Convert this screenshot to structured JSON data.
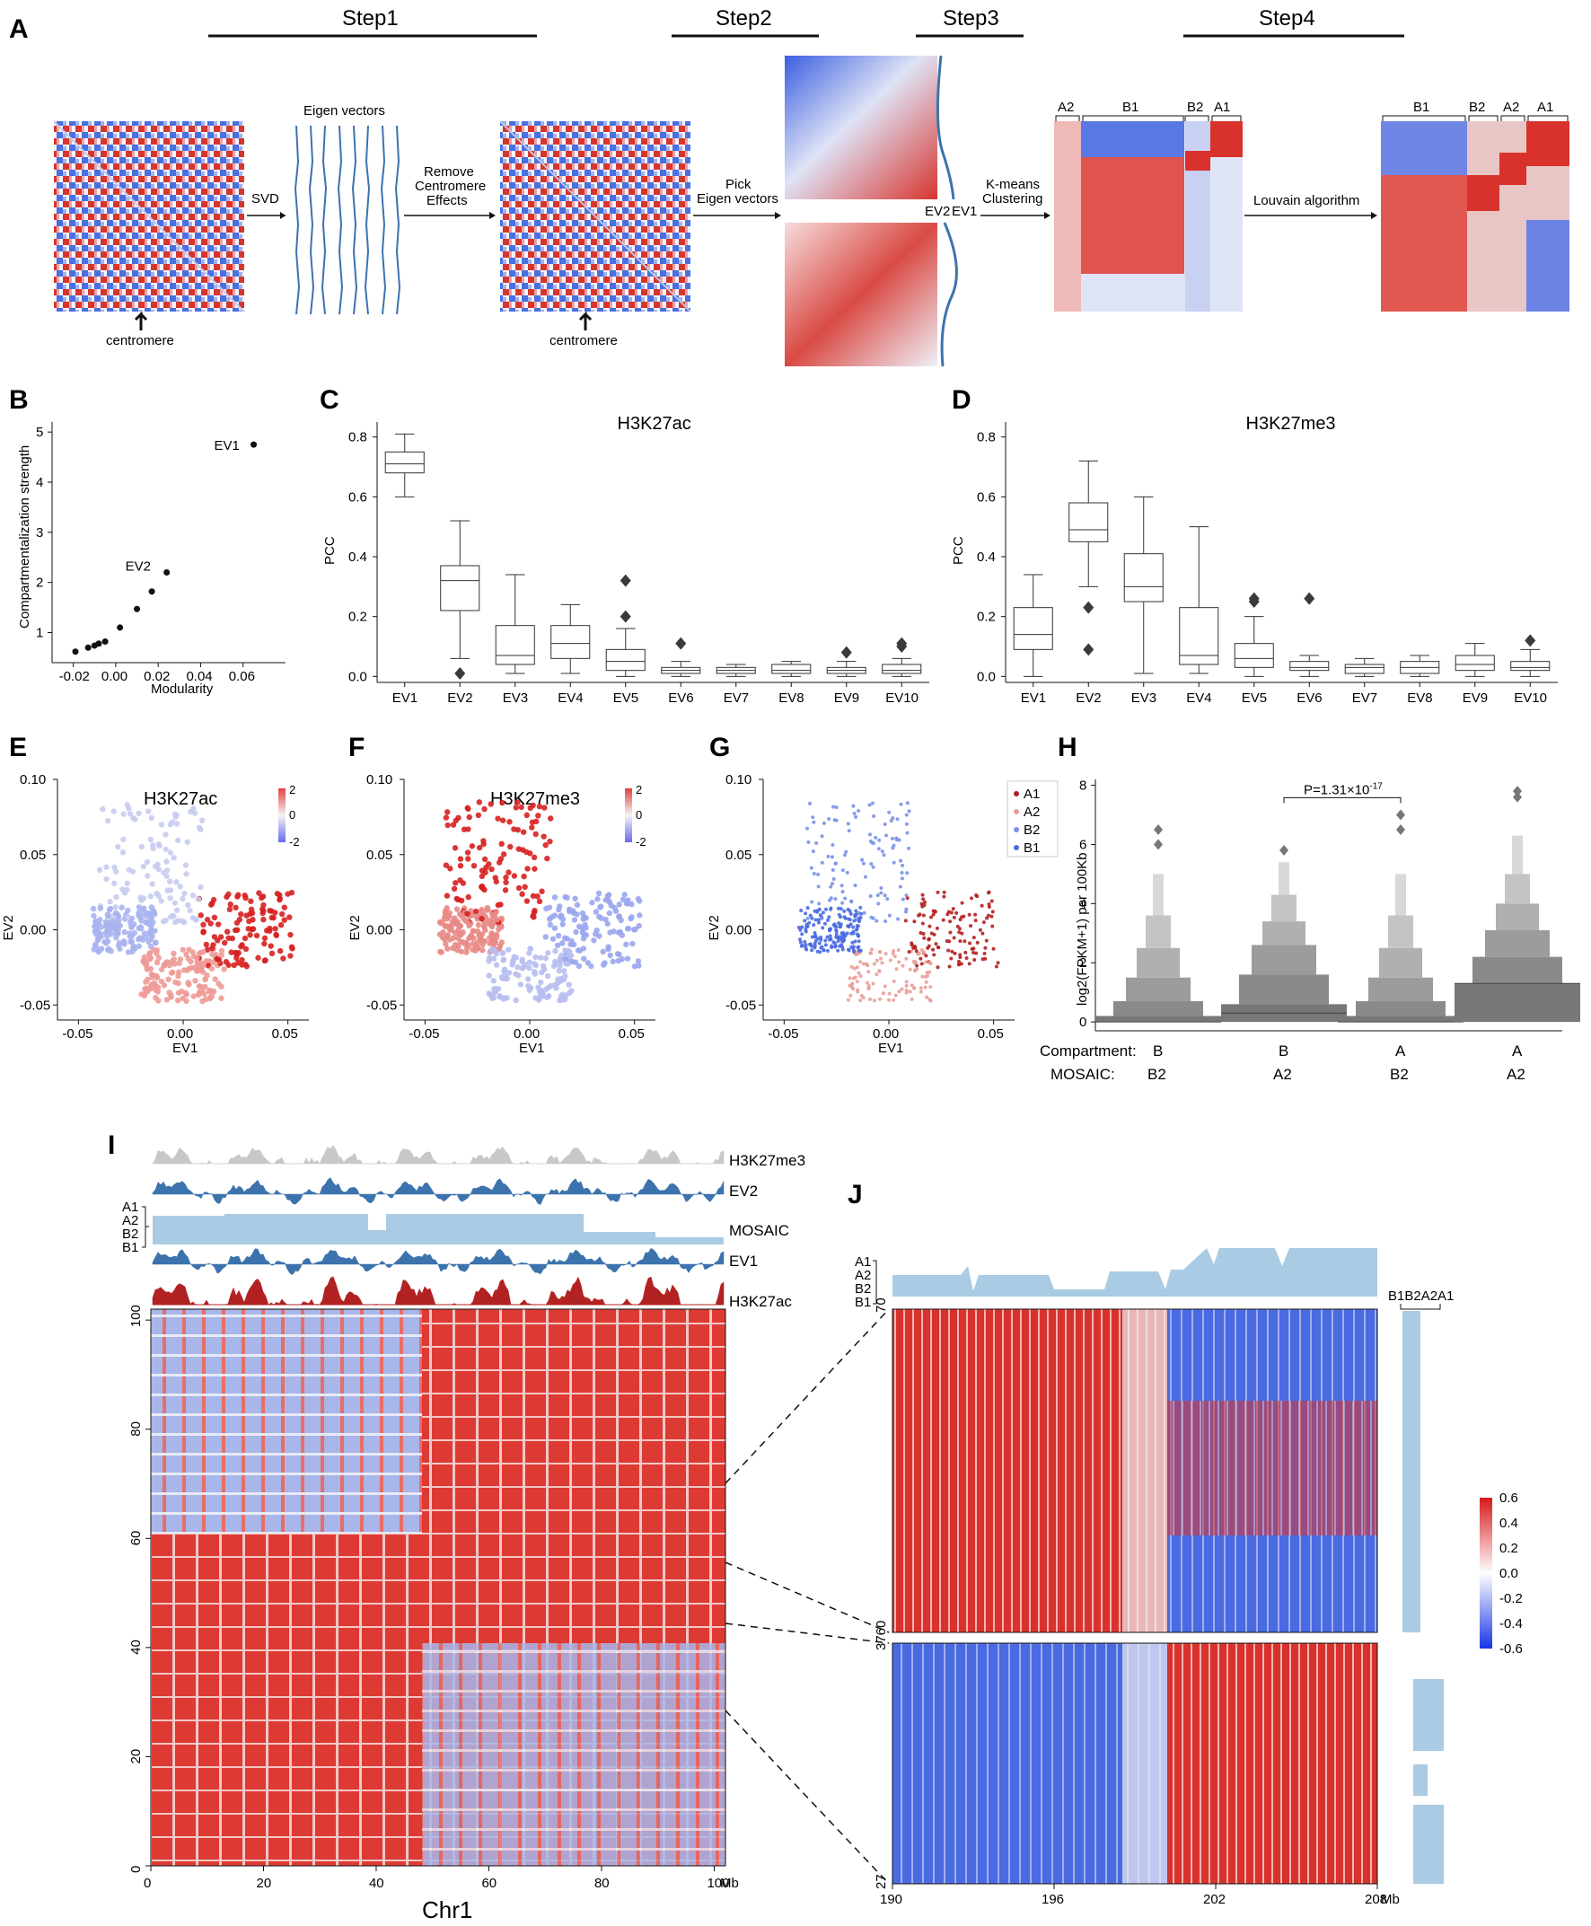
{
  "panels": {
    "A": "A",
    "B": "B",
    "C": "C",
    "D": "D",
    "E": "E",
    "F": "F",
    "G": "G",
    "H": "H",
    "I": "I",
    "J": "J"
  },
  "panel_a": {
    "steps": [
      "Step1",
      "Step2",
      "Step3",
      "Step4"
    ],
    "eigen_label": "Eigen vectors",
    "arrows": [
      "SVD",
      "Remove\nCentromere\nEffects",
      "Pick\nEigen vectors",
      "K-means\nClustering",
      "Louvain algorithm"
    ],
    "centromere": "centromere",
    "ev_labels": [
      "EV2",
      "EV1"
    ],
    "kmeans_clusters": [
      "A2",
      "B1",
      "B2",
      "A1"
    ],
    "louvain_clusters": [
      "B1",
      "B2",
      "A2",
      "A1"
    ]
  },
  "colors": {
    "red": "#d7191c",
    "blue": "#2c4fd6",
    "steel": "#3d73ad",
    "lightblue": "#a9cbe3",
    "grey": "#7a7a7a"
  },
  "chart_data": [
    {
      "id": "B",
      "type": "scatter",
      "xlabel": "Modularity",
      "ylabel": "Compartmentalization strength",
      "xlim": [
        -0.03,
        0.08
      ],
      "ylim": [
        0.4,
        5.2
      ],
      "xticks": [
        "-0.02",
        "0.00",
        "0.02",
        "0.04",
        "0.06"
      ],
      "yticks": [
        "1",
        "2",
        "3",
        "4",
        "5"
      ],
      "points": [
        {
          "x": 0.065,
          "y": 4.75,
          "label": "EV1"
        },
        {
          "x": 0.024,
          "y": 2.2,
          "label": "EV2"
        },
        {
          "x": 0.017,
          "y": 1.82
        },
        {
          "x": 0.01,
          "y": 1.47
        },
        {
          "x": 0.002,
          "y": 1.1
        },
        {
          "x": -0.005,
          "y": 0.82
        },
        {
          "x": -0.008,
          "y": 0.78
        },
        {
          "x": -0.01,
          "y": 0.74
        },
        {
          "x": -0.013,
          "y": 0.7
        },
        {
          "x": -0.019,
          "y": 0.62
        }
      ]
    },
    {
      "id": "C",
      "type": "box",
      "title": "H3K27ac",
      "ylabel": "PCC",
      "ylim": [
        -0.02,
        0.85
      ],
      "yticks": [
        "0.0",
        "0.2",
        "0.4",
        "0.6",
        "0.8"
      ],
      "categories": [
        "EV1",
        "EV2",
        "EV3",
        "EV4",
        "EV5",
        "EV6",
        "EV7",
        "EV8",
        "EV9",
        "EV10"
      ],
      "boxes": [
        {
          "min": 0.6,
          "q1": 0.68,
          "med": 0.71,
          "q3": 0.75,
          "max": 0.81,
          "fliers": []
        },
        {
          "min": 0.06,
          "q1": 0.22,
          "med": 0.32,
          "q3": 0.37,
          "max": 0.52,
          "fliers": [
            0.01
          ]
        },
        {
          "min": 0.01,
          "q1": 0.04,
          "med": 0.07,
          "q3": 0.17,
          "max": 0.34,
          "fliers": []
        },
        {
          "min": 0.01,
          "q1": 0.06,
          "med": 0.11,
          "q3": 0.17,
          "max": 0.24,
          "fliers": []
        },
        {
          "min": 0.0,
          "q1": 0.02,
          "med": 0.05,
          "q3": 0.09,
          "max": 0.16,
          "fliers": [
            0.2,
            0.32
          ]
        },
        {
          "min": 0.0,
          "q1": 0.01,
          "med": 0.02,
          "q3": 0.03,
          "max": 0.05,
          "fliers": [
            0.11
          ]
        },
        {
          "min": 0.0,
          "q1": 0.01,
          "med": 0.02,
          "q3": 0.03,
          "max": 0.04,
          "fliers": []
        },
        {
          "min": 0.0,
          "q1": 0.01,
          "med": 0.02,
          "q3": 0.04,
          "max": 0.05,
          "fliers": []
        },
        {
          "min": 0.0,
          "q1": 0.01,
          "med": 0.02,
          "q3": 0.03,
          "max": 0.05,
          "fliers": [
            0.08
          ]
        },
        {
          "min": 0.0,
          "q1": 0.01,
          "med": 0.02,
          "q3": 0.04,
          "max": 0.06,
          "fliers": [
            0.1,
            0.11
          ]
        }
      ]
    },
    {
      "id": "D",
      "type": "box",
      "title": "H3K27me3",
      "ylabel": "PCC",
      "ylim": [
        -0.02,
        0.85
      ],
      "yticks": [
        "0.0",
        "0.2",
        "0.4",
        "0.6",
        "0.8"
      ],
      "categories": [
        "EV1",
        "EV2",
        "EV3",
        "EV4",
        "EV5",
        "EV6",
        "EV7",
        "EV8",
        "EV9",
        "EV10"
      ],
      "boxes": [
        {
          "min": 0.0,
          "q1": 0.09,
          "med": 0.14,
          "q3": 0.23,
          "max": 0.34,
          "fliers": []
        },
        {
          "min": 0.3,
          "q1": 0.45,
          "med": 0.49,
          "q3": 0.58,
          "max": 0.72,
          "fliers": [
            0.23,
            0.09
          ]
        },
        {
          "min": 0.01,
          "q1": 0.25,
          "med": 0.3,
          "q3": 0.41,
          "max": 0.6,
          "fliers": []
        },
        {
          "min": 0.01,
          "q1": 0.04,
          "med": 0.07,
          "q3": 0.23,
          "max": 0.5,
          "fliers": []
        },
        {
          "min": 0.0,
          "q1": 0.03,
          "med": 0.06,
          "q3": 0.11,
          "max": 0.2,
          "fliers": [
            0.25,
            0.26
          ]
        },
        {
          "min": 0.0,
          "q1": 0.02,
          "med": 0.03,
          "q3": 0.05,
          "max": 0.07,
          "fliers": [
            0.26
          ]
        },
        {
          "min": 0.0,
          "q1": 0.01,
          "med": 0.03,
          "q3": 0.04,
          "max": 0.06,
          "fliers": []
        },
        {
          "min": 0.0,
          "q1": 0.01,
          "med": 0.03,
          "q3": 0.05,
          "max": 0.07,
          "fliers": []
        },
        {
          "min": 0.0,
          "q1": 0.02,
          "med": 0.04,
          "q3": 0.07,
          "max": 0.11,
          "fliers": []
        },
        {
          "min": 0.0,
          "q1": 0.02,
          "med": 0.03,
          "q3": 0.05,
          "max": 0.09,
          "fliers": [
            0.12
          ]
        }
      ]
    },
    {
      "id": "E",
      "type": "scatter",
      "title": "H3K27ac",
      "xlabel": "EV1",
      "ylabel": "EV2",
      "xlim": [
        -0.06,
        0.06
      ],
      "ylim": [
        -0.06,
        0.1
      ],
      "xticks": [
        "-0.05",
        "0.00",
        "0.05"
      ],
      "yticks": [
        "-0.05",
        "0.00",
        "0.05",
        "0.10"
      ],
      "colorbar": [
        "2",
        "0",
        "-2"
      ]
    },
    {
      "id": "F",
      "type": "scatter",
      "title": "H3K27me3",
      "xlabel": "EV1",
      "ylabel": "EV2",
      "xlim": [
        -0.06,
        0.06
      ],
      "ylim": [
        -0.06,
        0.1
      ],
      "xticks": [
        "-0.05",
        "0.00",
        "0.05"
      ],
      "yticks": [
        "-0.05",
        "0.00",
        "0.05",
        "0.10"
      ],
      "colorbar": [
        "2",
        "0",
        "-2"
      ]
    },
    {
      "id": "G",
      "type": "scatter",
      "xlabel": "EV1",
      "ylabel": "EV2",
      "xlim": [
        -0.06,
        0.06
      ],
      "ylim": [
        -0.06,
        0.1
      ],
      "xticks": [
        "-0.05",
        "0.00",
        "0.05"
      ],
      "yticks": [
        "-0.05",
        "0.00",
        "0.05",
        "0.10"
      ],
      "legend": [
        "A1",
        "A2",
        "B2",
        "B1"
      ]
    },
    {
      "id": "H",
      "type": "boxen",
      "ylabel": "log2(FPKM+1) per 100Kb",
      "ylim": [
        -0.3,
        8.2
      ],
      "yticks": [
        "0",
        "2",
        "4",
        "6",
        "8"
      ],
      "row_labels": [
        "Compartment:",
        "MOSAIC:"
      ],
      "groups": [
        {
          "compartment": "B",
          "mosaic": "B2",
          "median": 0.0,
          "outliers": [
            6.0,
            6.5
          ]
        },
        {
          "compartment": "B",
          "mosaic": "A2",
          "median": 0.3,
          "outliers": [
            5.8
          ]
        },
        {
          "compartment": "A",
          "mosaic": "B2",
          "median": 0.0,
          "outliers": [
            6.5,
            7.0
          ]
        },
        {
          "compartment": "A",
          "mosaic": "A2",
          "median": 1.3,
          "outliers": [
            7.6,
            7.8
          ]
        }
      ],
      "pvalue": "P=1.31×10",
      "pvalue_exp": "-17"
    }
  ],
  "panel_i": {
    "tracks": [
      "H3K27me3",
      "EV2",
      "MOSAIC",
      "EV1",
      "H3K27ac"
    ],
    "mosaic_levels": [
      "A1",
      "A2",
      "B2",
      "B1"
    ],
    "yticks": [
      "0",
      "20",
      "40",
      "60",
      "80",
      "100"
    ],
    "xticks": [
      "0",
      "20",
      "40",
      "60",
      "80",
      "100"
    ],
    "unit": "Mb",
    "xlabel": "Chr1"
  },
  "panel_j": {
    "mosaic_levels": [
      "A1",
      "A2",
      "B2",
      "B1"
    ],
    "side_header": "B1B2A2A1",
    "top_yticks": [
      "70",
      "3760"
    ],
    "bottom_yticks": [
      "27"
    ],
    "xticks": [
      "190",
      "196",
      "202",
      "208"
    ],
    "unit": "Mb",
    "colorbar": [
      "0.6",
      "0.4",
      "0.2",
      "0.0",
      "-0.2",
      "-0.4",
      "-0.6"
    ]
  }
}
